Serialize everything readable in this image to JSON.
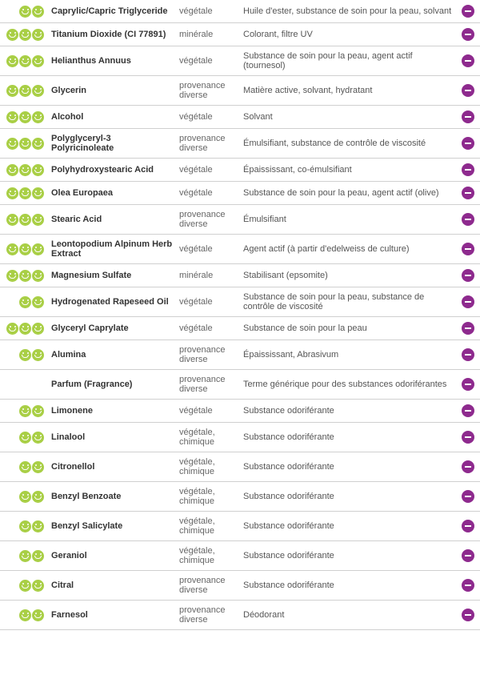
{
  "ingredients": [
    {
      "smiles": 2,
      "name": "Caprylic/Capric Triglyceride",
      "origin": "végétale",
      "desc": "Huile d'ester, substance de soin pour la peau, solvant"
    },
    {
      "smiles": 3,
      "name": "Titanium Dioxide (CI 77891)",
      "origin": "minérale",
      "desc": "Colorant, filtre UV"
    },
    {
      "smiles": 3,
      "name": "Helianthus Annuus",
      "origin": "végétale",
      "desc": "Substance de soin pour la peau, agent actif (tournesol)"
    },
    {
      "smiles": 3,
      "name": "Glycerin",
      "origin": "provenance diverse",
      "desc": "Matière active, solvant, hydratant"
    },
    {
      "smiles": 3,
      "name": "Alcohol",
      "origin": "végétale",
      "desc": "Solvant"
    },
    {
      "smiles": 3,
      "name": "Polyglyceryl-3 Polyricinoleate",
      "origin": "provenance diverse",
      "desc": "Émulsifiant, substance de contrôle de viscosité"
    },
    {
      "smiles": 3,
      "name": "Polyhydroxystearic Acid",
      "origin": "végétale",
      "desc": "Épaississant, co-émulsifiant"
    },
    {
      "smiles": 3,
      "name": "Olea Europaea",
      "origin": "végétale",
      "desc": "Substance de soin pour la peau, agent actif (olive)"
    },
    {
      "smiles": 3,
      "name": "Stearic Acid",
      "origin": "provenance diverse",
      "desc": "Émulsifiant"
    },
    {
      "smiles": 3,
      "name": "Leontopodium Alpinum Herb Extract",
      "origin": "végétale",
      "desc": "Agent actif (à partir d'edelweiss de culture)"
    },
    {
      "smiles": 3,
      "name": "Magnesium Sulfate",
      "origin": "minérale",
      "desc": "Stabilisant (epsomite)"
    },
    {
      "smiles": 2,
      "name": "Hydrogenated Rapeseed Oil",
      "origin": "végétale",
      "desc": "Substance de soin pour la peau, substance de contrôle de viscosité"
    },
    {
      "smiles": 3,
      "name": "Glyceryl Caprylate",
      "origin": "végétale",
      "desc": "Substance de soin pour la peau"
    },
    {
      "smiles": 2,
      "name": "Alumina",
      "origin": "provenance diverse",
      "desc": "Épaississant, Abrasivum"
    },
    {
      "smiles": 0,
      "name": "Parfum (Fragrance)",
      "origin": "provenance diverse",
      "desc": "Terme générique pour des substances odoriférantes"
    },
    {
      "smiles": 2,
      "name": "Limonene",
      "origin": "végétale",
      "desc": "Substance odoriférante"
    },
    {
      "smiles": 2,
      "name": "Linalool",
      "origin": "végétale, chimique",
      "desc": "Substance odoriférante"
    },
    {
      "smiles": 2,
      "name": "Citronellol",
      "origin": "végétale, chimique",
      "desc": "Substance odoriférante"
    },
    {
      "smiles": 2,
      "name": "Benzyl Benzoate",
      "origin": "végétale, chimique",
      "desc": "Substance odoriférante"
    },
    {
      "smiles": 2,
      "name": "Benzyl Salicylate",
      "origin": "végétale, chimique",
      "desc": "Substance odoriférante"
    },
    {
      "smiles": 2,
      "name": "Geraniol",
      "origin": "végétale, chimique",
      "desc": "Substance odoriférante"
    },
    {
      "smiles": 2,
      "name": "Citral",
      "origin": "provenance diverse",
      "desc": "Substance odoriférante"
    },
    {
      "smiles": 2,
      "name": "Farnesol",
      "origin": "provenance diverse",
      "desc": "Déodorant"
    }
  ],
  "colors": {
    "smile": "#a9cf46",
    "minus": "#8e2a8e",
    "border": "#d0d0d0"
  }
}
